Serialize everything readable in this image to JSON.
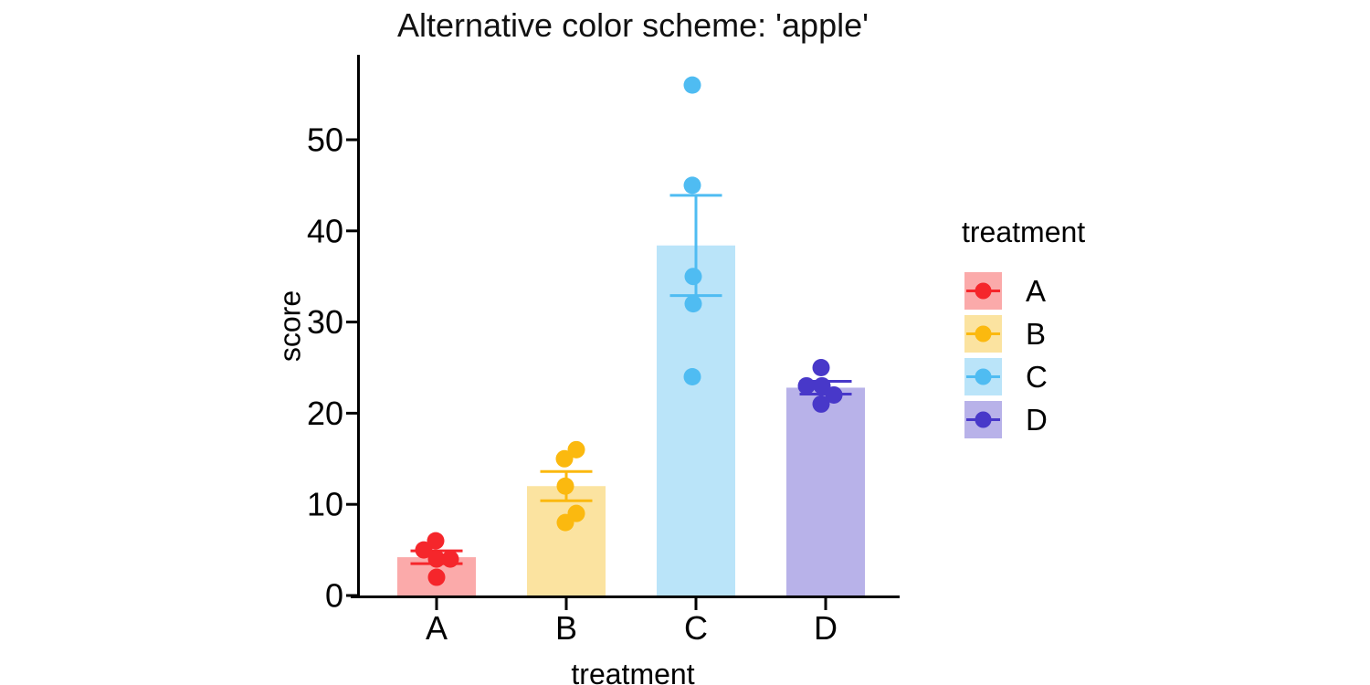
{
  "chart_data": {
    "type": "bar",
    "title": "Alternative color scheme: 'apple'",
    "xlabel": "treatment",
    "ylabel": "score",
    "legend_title": "treatment",
    "legend_position": "right",
    "grid": false,
    "ylim": [
      0,
      58
    ],
    "yticks": [
      0,
      10,
      20,
      30,
      40,
      50
    ],
    "categories": [
      "A",
      "B",
      "C",
      "D"
    ],
    "series": [
      {
        "name": "A",
        "mean": 4.2,
        "se": 0.7,
        "points": [
          6,
          5,
          4,
          4,
          2
        ],
        "point_dx": [
          -1,
          -14,
          0,
          15,
          0
        ],
        "bar_color": "#FBAAAA",
        "point_color": "#F5262B"
      },
      {
        "name": "B",
        "mean": 12.0,
        "se": 1.6,
        "points": [
          16,
          15,
          12,
          9,
          8
        ],
        "point_dx": [
          11,
          -2,
          -1,
          11,
          -1
        ],
        "bar_color": "#FBE3A0",
        "point_color": "#FBB90F"
      },
      {
        "name": "C",
        "mean": 38.4,
        "se": 5.5,
        "points": [
          56,
          45,
          35,
          32,
          24
        ],
        "point_dx": [
          -4,
          -4,
          -3,
          -3,
          -4
        ],
        "bar_color": "#BAE4F9",
        "point_color": "#4FBCF2"
      },
      {
        "name": "D",
        "mean": 22.8,
        "se": 0.7,
        "points": [
          25,
          23,
          23,
          22,
          21
        ],
        "point_dx": [
          -5,
          -21,
          -4,
          9,
          -5
        ],
        "bar_color": "#B8B2E9",
        "point_color": "#4838C9"
      }
    ]
  }
}
